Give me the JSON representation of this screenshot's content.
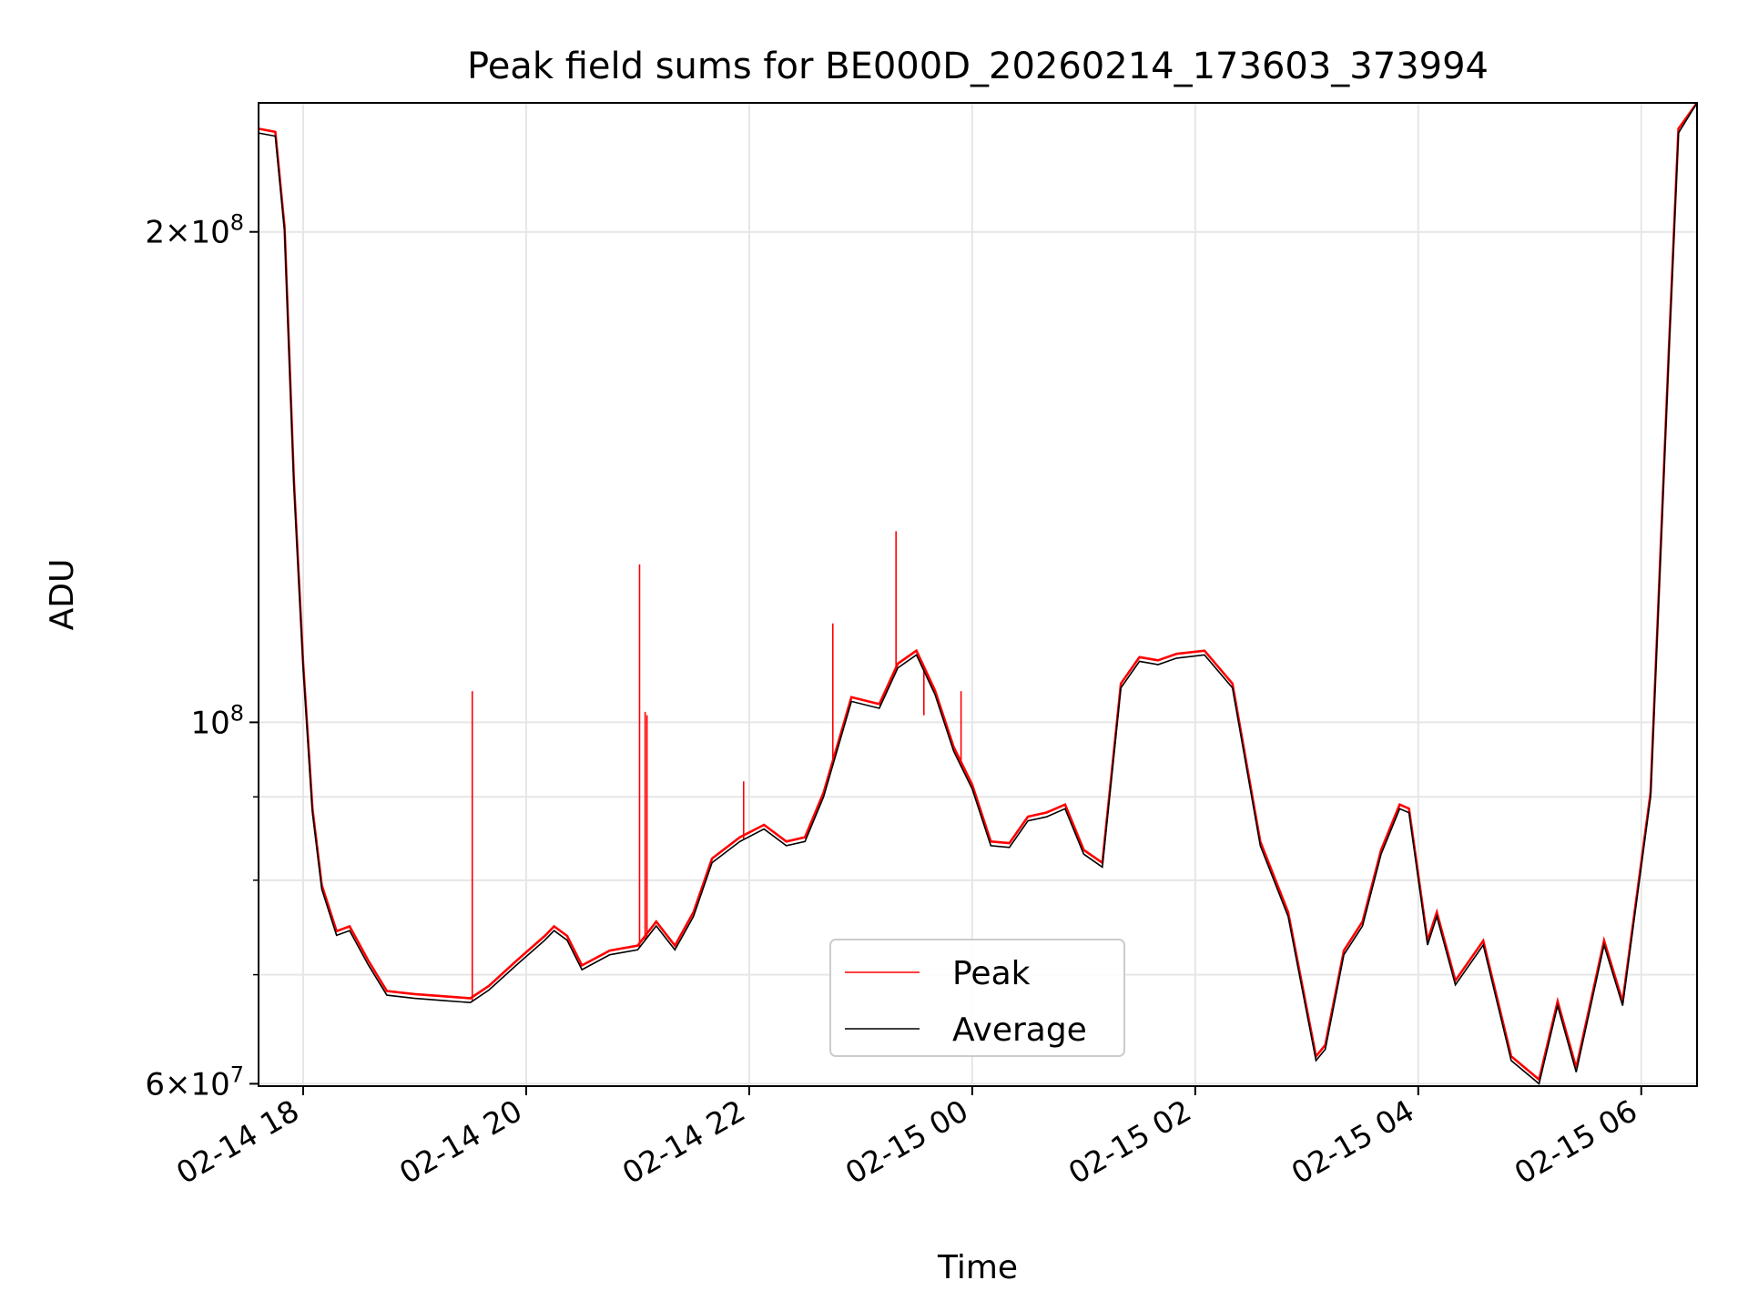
{
  "chart_data": {
    "type": "line",
    "title": "Peak field sums for BE000D_20260214_173603_373994",
    "xlabel": "Time",
    "ylabel": "ADU",
    "yscale": "log",
    "grid": true,
    "legend_position": "lower-center",
    "x_range": [
      "2026-02-14 17:36",
      "2026-02-15 06:30"
    ],
    "y_range": [
      59800000,
      240000000
    ],
    "x_ticks": [
      {
        "t": "2026-02-14 18:00",
        "label": "02-14 18"
      },
      {
        "t": "2026-02-14 20:00",
        "label": "02-14 20"
      },
      {
        "t": "2026-02-14 22:00",
        "label": "02-14 22"
      },
      {
        "t": "2026-02-15 00:00",
        "label": "02-15 00"
      },
      {
        "t": "2026-02-15 02:00",
        "label": "02-15 02"
      },
      {
        "t": "2026-02-15 04:00",
        "label": "02-15 04"
      },
      {
        "t": "2026-02-15 06:00",
        "label": "02-15 06"
      }
    ],
    "y_ticks": [
      {
        "value": 200000000,
        "base": "2×10",
        "exp": "8"
      },
      {
        "value": 100000000,
        "base": "10",
        "exp": "8"
      },
      {
        "value": 60000000,
        "base": "6×10",
        "exp": "7"
      }
    ],
    "y_minor_gridlines": [
      70000000,
      80000000,
      90000000
    ],
    "series": [
      {
        "name": "Average",
        "color": "#000000",
        "points": [
          [
            "2026-02-14 17:36",
            230000000
          ],
          [
            "2026-02-14 17:45",
            229000000
          ],
          [
            "2026-02-14 17:50",
            200000000
          ],
          [
            "2026-02-14 17:55",
            140000000
          ],
          [
            "2026-02-14 18:00",
            108000000
          ],
          [
            "2026-02-14 18:05",
            88000000
          ],
          [
            "2026-02-14 18:10",
            79000000
          ],
          [
            "2026-02-14 18:18",
            74000000
          ],
          [
            "2026-02-14 18:25",
            74500000
          ],
          [
            "2026-02-14 18:35",
            71000000
          ],
          [
            "2026-02-14 18:45",
            68000000
          ],
          [
            "2026-02-14 19:00",
            67700000
          ],
          [
            "2026-02-14 19:15",
            67500000
          ],
          [
            "2026-02-14 19:30",
            67300000
          ],
          [
            "2026-02-14 19:40",
            68500000
          ],
          [
            "2026-02-14 19:55",
            71000000
          ],
          [
            "2026-02-14 20:10",
            73500000
          ],
          [
            "2026-02-14 20:15",
            74500000
          ],
          [
            "2026-02-14 20:22",
            73500000
          ],
          [
            "2026-02-14 20:30",
            70500000
          ],
          [
            "2026-02-14 20:45",
            72000000
          ],
          [
            "2026-02-14 21:00",
            72500000
          ],
          [
            "2026-02-14 21:10",
            75000000
          ],
          [
            "2026-02-14 21:20",
            72500000
          ],
          [
            "2026-02-14 21:30",
            76000000
          ],
          [
            "2026-02-14 21:40",
            82000000
          ],
          [
            "2026-02-14 21:55",
            84500000
          ],
          [
            "2026-02-14 22:08",
            86000000
          ],
          [
            "2026-02-14 22:20",
            84000000
          ],
          [
            "2026-02-14 22:30",
            84500000
          ],
          [
            "2026-02-14 22:40",
            90000000
          ],
          [
            "2026-02-14 22:55",
            103000000
          ],
          [
            "2026-02-14 23:10",
            102000000
          ],
          [
            "2026-02-14 23:20",
            108000000
          ],
          [
            "2026-02-14 23:30",
            110000000
          ],
          [
            "2026-02-14 23:40",
            104000000
          ],
          [
            "2026-02-14 23:50",
            96000000
          ],
          [
            "2026-02-15 00:00",
            91000000
          ],
          [
            "2026-02-15 00:10",
            84000000
          ],
          [
            "2026-02-15 00:20",
            83800000
          ],
          [
            "2026-02-15 00:30",
            87000000
          ],
          [
            "2026-02-15 00:40",
            87500000
          ],
          [
            "2026-02-15 00:50",
            88500000
          ],
          [
            "2026-02-15 01:00",
            83000000
          ],
          [
            "2026-02-15 01:10",
            81500000
          ],
          [
            "2026-02-15 01:20",
            105000000
          ],
          [
            "2026-02-15 01:30",
            109000000
          ],
          [
            "2026-02-15 01:40",
            108500000
          ],
          [
            "2026-02-15 01:50",
            109500000
          ],
          [
            "2026-02-15 02:05",
            110000000
          ],
          [
            "2026-02-15 02:20",
            105000000
          ],
          [
            "2026-02-15 02:35",
            84000000
          ],
          [
            "2026-02-15 02:50",
            76000000
          ],
          [
            "2026-02-15 02:55",
            71000000
          ],
          [
            "2026-02-15 03:05",
            62000000
          ],
          [
            "2026-02-15 03:10",
            63000000
          ],
          [
            "2026-02-15 03:20",
            72000000
          ],
          [
            "2026-02-15 03:30",
            75000000
          ],
          [
            "2026-02-15 03:40",
            83000000
          ],
          [
            "2026-02-15 03:50",
            88500000
          ],
          [
            "2026-02-15 03:55",
            88000000
          ],
          [
            "2026-02-15 04:05",
            73000000
          ],
          [
            "2026-02-15 04:10",
            76000000
          ],
          [
            "2026-02-15 04:20",
            69000000
          ],
          [
            "2026-02-15 04:35",
            73000000
          ],
          [
            "2026-02-15 04:50",
            62000000
          ],
          [
            "2026-02-15 05:05",
            60000000
          ],
          [
            "2026-02-15 05:15",
            67000000
          ],
          [
            "2026-02-15 05:25",
            61000000
          ],
          [
            "2026-02-15 05:40",
            73000000
          ],
          [
            "2026-02-15 05:50",
            67000000
          ],
          [
            "2026-02-15 06:05",
            90000000
          ],
          [
            "2026-02-15 06:15",
            170000000
          ],
          [
            "2026-02-15 06:20",
            230000000
          ],
          [
            "2026-02-15 06:30",
            240000000
          ]
        ]
      },
      {
        "name": "Peak",
        "color": "#ff0000",
        "spikes": [
          [
            "2026-02-14 19:31",
            104500000
          ],
          [
            "2026-02-14 21:01",
            125000000
          ],
          [
            "2026-02-14 21:04",
            101500000
          ],
          [
            "2026-02-14 21:05",
            101000000
          ],
          [
            "2026-02-14 21:57",
            92000000
          ],
          [
            "2026-02-14 22:45",
            115000000
          ],
          [
            "2026-02-14 23:19",
            131000000
          ],
          [
            "2026-02-14 23:34",
            101000000
          ],
          [
            "2026-02-14 23:54",
            104500000
          ]
        ]
      }
    ]
  }
}
